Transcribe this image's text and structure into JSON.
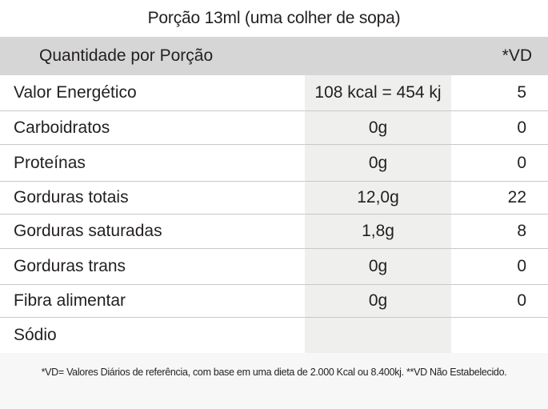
{
  "title": "Porção 13ml (uma colher de sopa)",
  "header": {
    "left": "Quantidade por Porção",
    "right": "*VD"
  },
  "rows": [
    {
      "name": "Valor Energético",
      "amount": "108 kcal = 454 kj",
      "vd": "5"
    },
    {
      "name": "Carboidratos",
      "amount": "0g",
      "vd": "0"
    },
    {
      "name": "Proteínas",
      "amount": "0g",
      "vd": "0"
    },
    {
      "name": "Gorduras totais",
      "amount": "12,0g",
      "vd": "22"
    },
    {
      "name": "Gorduras saturadas",
      "amount": "1,8g",
      "vd": "8"
    },
    {
      "name": "Gorduras trans",
      "amount": "0g",
      "vd": "0"
    },
    {
      "name": "Fibra alimentar",
      "amount": "0g",
      "vd": "0"
    },
    {
      "name": "Sódio",
      "amount": "",
      "vd": ""
    }
  ],
  "footnote": "*VD= Valores Diários de referência, com base em uma dieta de 2.000 Kcal ou 8.400kj. **VD Não Estabelecido."
}
